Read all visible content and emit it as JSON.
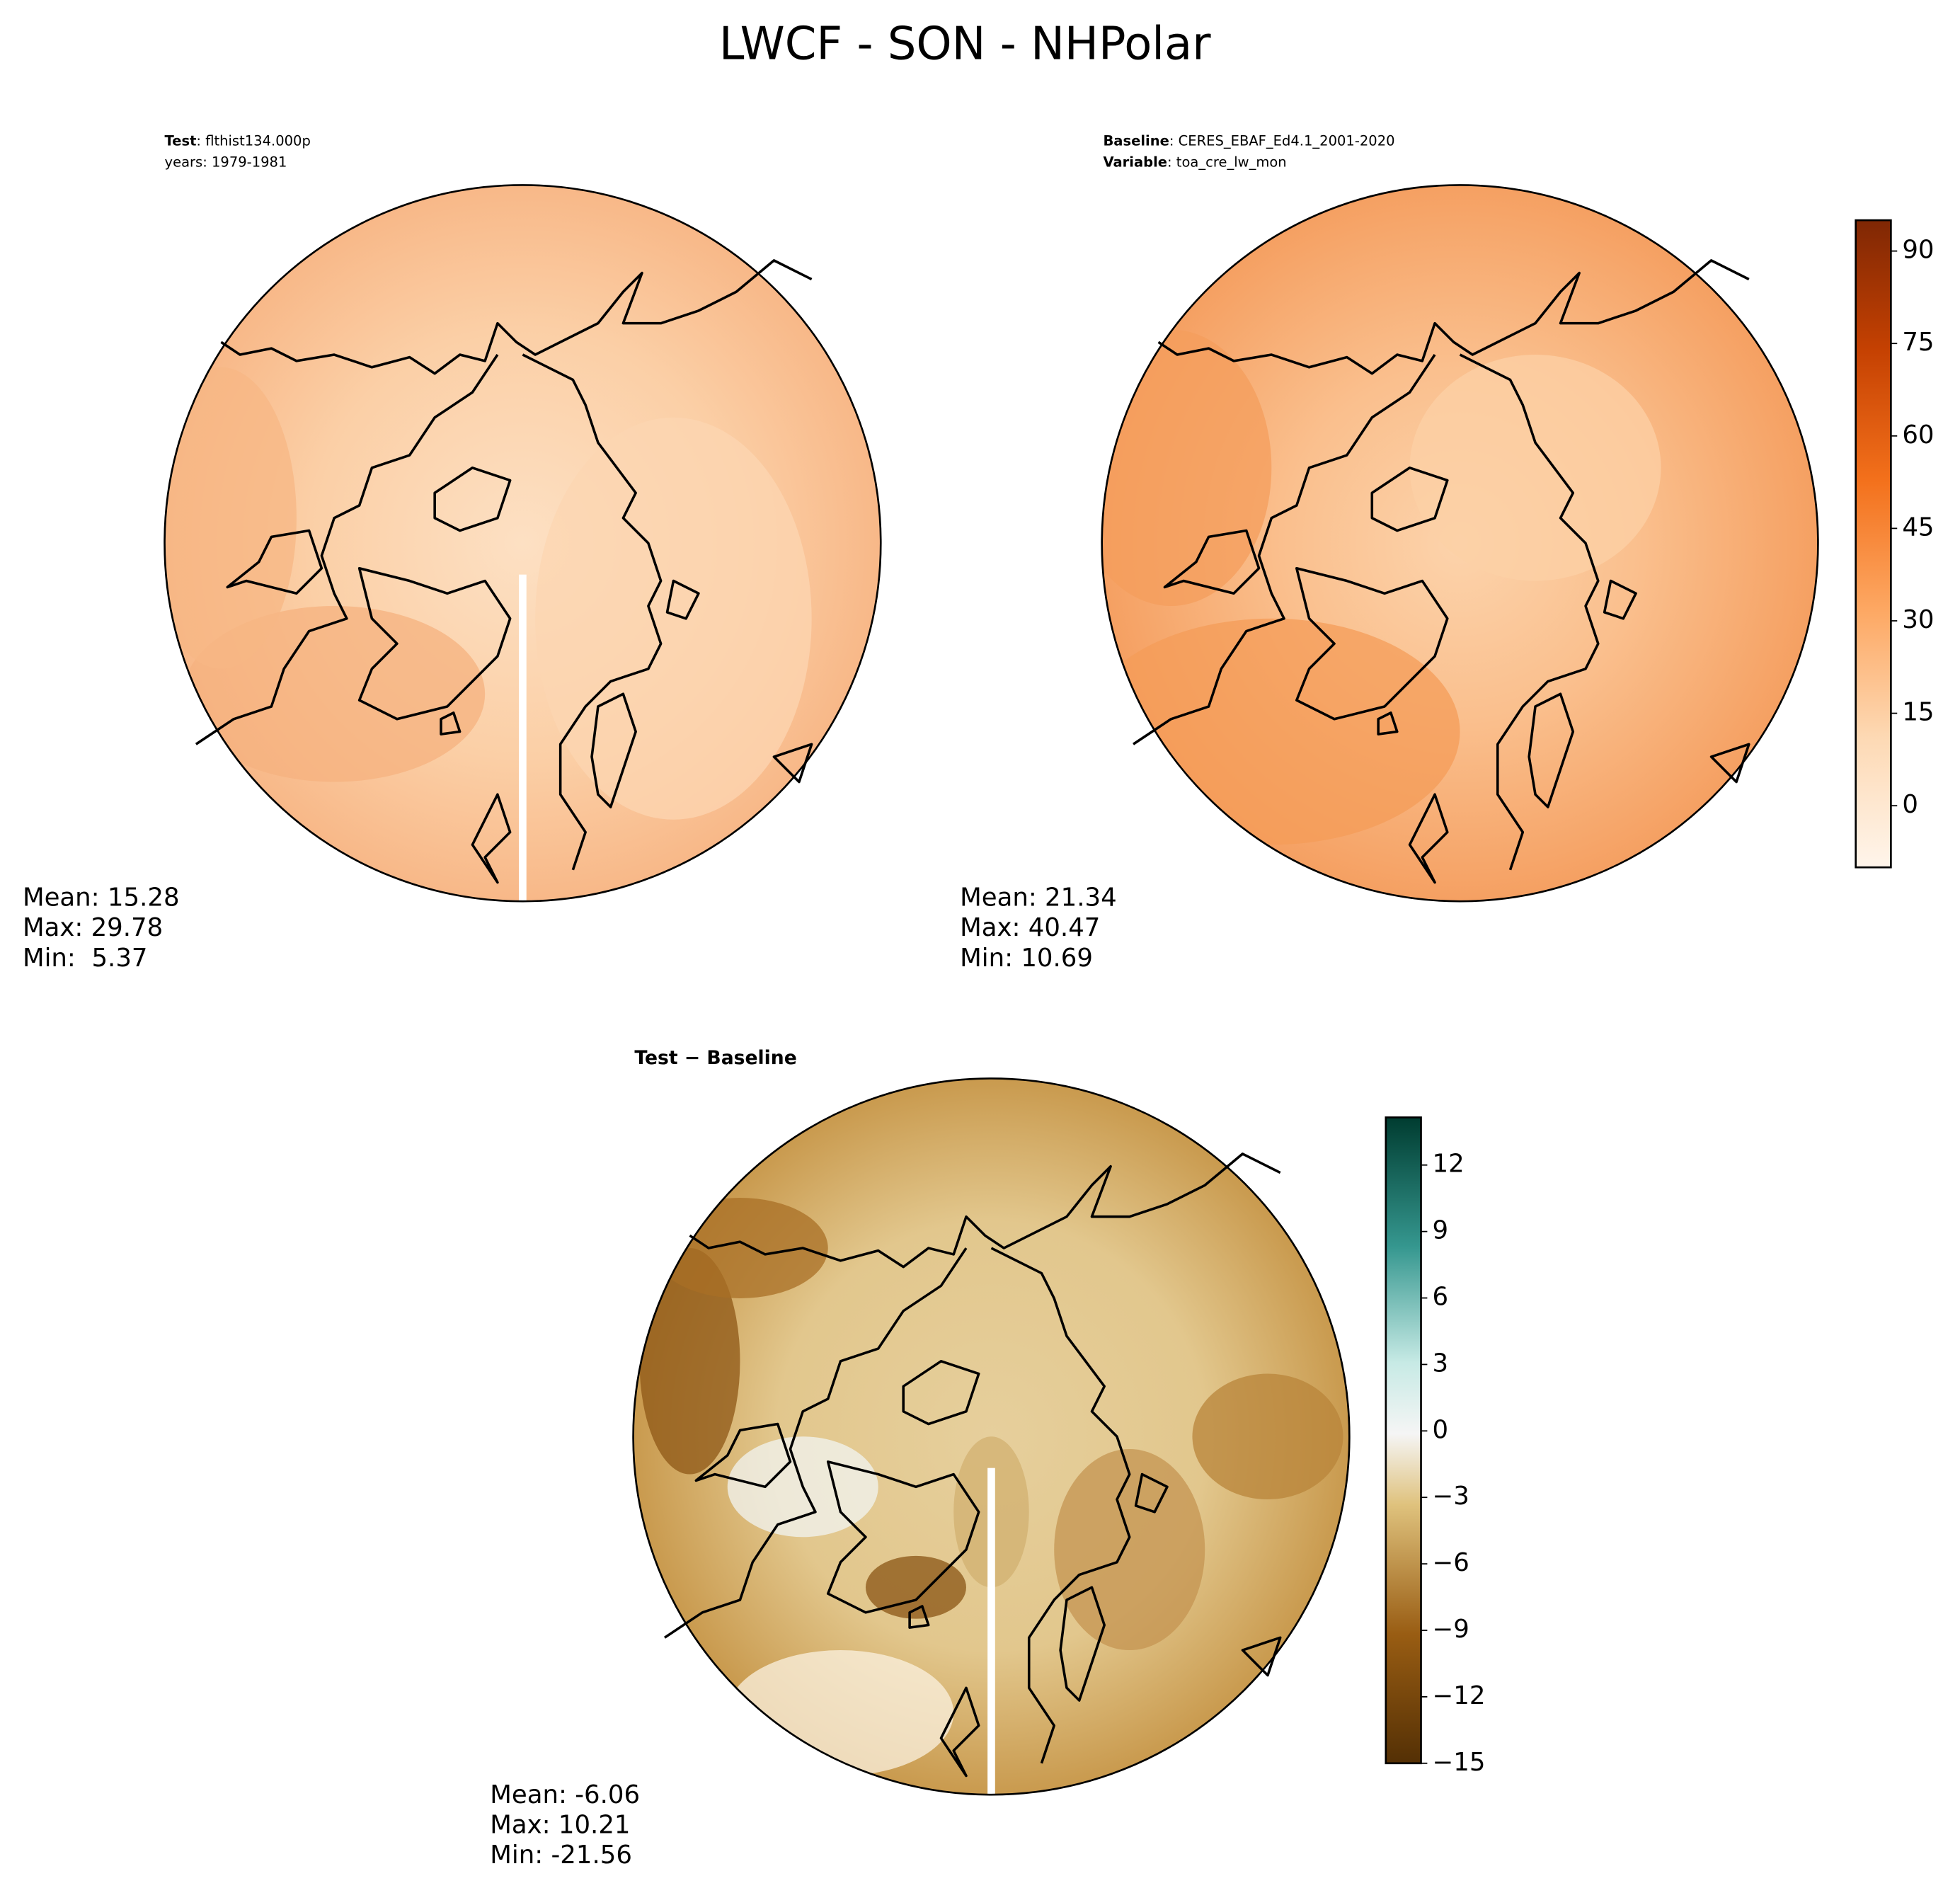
{
  "title": "LWCF - SON - NHPolar",
  "panels": [
    {
      "labels": [
        {
          "key": "Test",
          "text": ": flthist134.000p"
        },
        {
          "text": "years: 1979-1981"
        }
      ],
      "stats": [
        "Mean: 15.28",
        "Max: 29.78",
        "Min:  5.37"
      ]
    },
    {
      "labels": [
        {
          "key": "Baseline",
          "text": ": CERES_EBAF_Ed4.1_2001-2020"
        },
        {
          "key": "Variable",
          "text": ": toa_cre_lw_mon"
        }
      ],
      "stats": [
        "Mean: 21.34",
        "Max: 40.47",
        "Min: 10.69"
      ],
      "colorbar": {
        "lim": [
          -10,
          95
        ],
        "ticks": [
          0,
          15,
          30,
          45,
          60,
          75,
          90
        ]
      }
    },
    {
      "labels": [
        {
          "key": "Test − Baseline"
        }
      ],
      "stats": [
        "Mean: -6.06",
        "Max: 10.21",
        "Min: -21.56"
      ],
      "colorbar": {
        "lim": [
          -15,
          14.15
        ],
        "ticks": [
          {
            "value": -15,
            "label": "−15"
          },
          {
            "value": -12,
            "label": "−12"
          },
          {
            "value": -9,
            "label": "−9"
          },
          {
            "value": -6,
            "label": "−6"
          },
          {
            "value": -3,
            "label": "−3"
          },
          0,
          3,
          6,
          9,
          12
        ]
      }
    }
  ]
}
